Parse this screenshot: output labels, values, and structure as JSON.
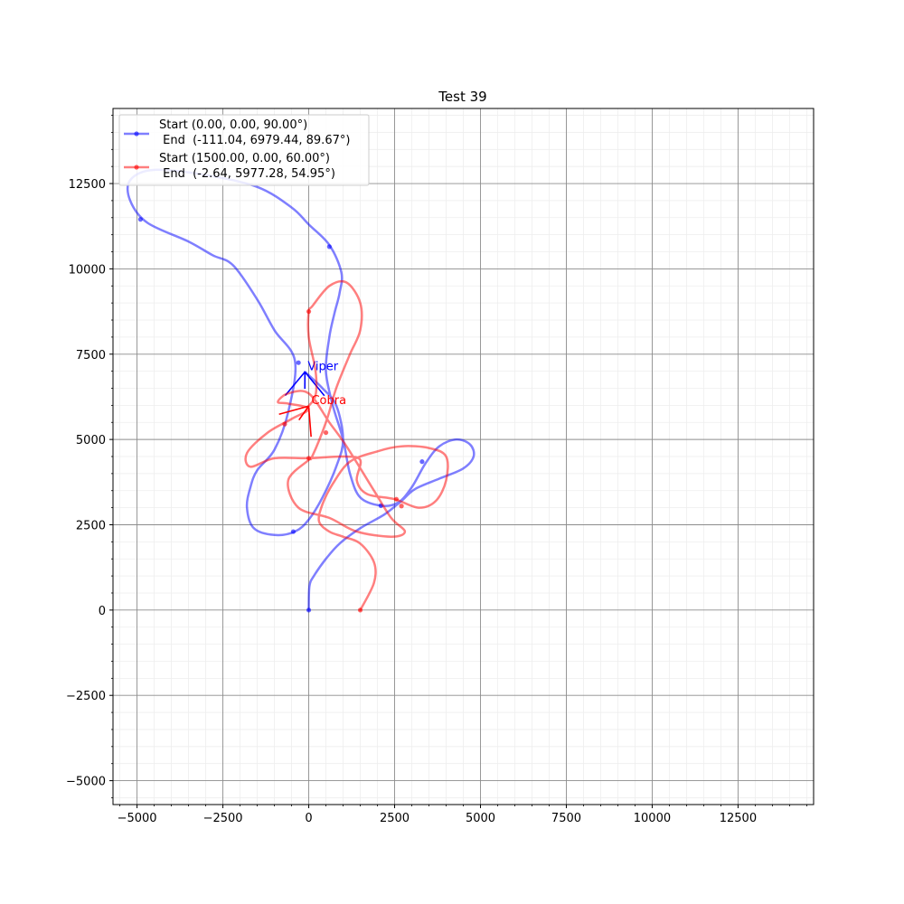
{
  "chart_data": {
    "type": "line",
    "title": "Test 39",
    "xlabel": "",
    "ylabel": "",
    "xlim": [
      -5700,
      14700
    ],
    "ylim": [
      -5700,
      14700
    ],
    "grid": "major and minor",
    "legend_position": "upper-left",
    "x_ticks": [
      -5000,
      -2500,
      0,
      2500,
      5000,
      7500,
      10000,
      12500
    ],
    "y_ticks": [
      -5000,
      -2500,
      0,
      2500,
      5000,
      7500,
      10000,
      12500
    ],
    "x_tick_labels": [
      "−5000",
      "−2500",
      "0",
      "2500",
      "5000",
      "7500",
      "10000",
      "12500"
    ],
    "y_tick_labels": [
      "−5000",
      "−2500",
      "0",
      "2500",
      "5000",
      "7500",
      "10000",
      "12500"
    ],
    "series": [
      {
        "name": "Start (0.00, 0.00, 90.00°)\n End  (-111.04, 6979.44, 89.67°)",
        "legend_line1": "Start (0.00, 0.00, 90.00°)",
        "legend_line2": " End  (-111.04, 6979.44, 89.67°)",
        "color": "#0000ff",
        "label": "Viper",
        "end_heading_deg": 89.67,
        "path": [
          [
            0,
            0
          ],
          [
            20,
            700
          ],
          [
            150,
            1000
          ],
          [
            500,
            1500
          ],
          [
            900,
            1950
          ],
          [
            1500,
            2400
          ],
          [
            2200,
            2800
          ],
          [
            2700,
            3200
          ],
          [
            3100,
            3550
          ],
          [
            3800,
            3850
          ],
          [
            4500,
            4150
          ],
          [
            4800,
            4500
          ],
          [
            4700,
            4850
          ],
          [
            4300,
            5000
          ],
          [
            3800,
            4800
          ],
          [
            3400,
            4300
          ],
          [
            3000,
            3600
          ],
          [
            2600,
            3150
          ],
          [
            2100,
            3060
          ],
          [
            1500,
            3300
          ],
          [
            1200,
            4000
          ],
          [
            1000,
            5000
          ],
          [
            700,
            6000
          ],
          [
            500,
            7000
          ],
          [
            600,
            8000
          ],
          [
            750,
            8700
          ],
          [
            900,
            9300
          ],
          [
            950,
            9900
          ],
          [
            600,
            10700
          ],
          [
            0,
            11300
          ],
          [
            -500,
            11800
          ],
          [
            -1500,
            12400
          ],
          [
            -3000,
            12750
          ],
          [
            -4500,
            12900
          ],
          [
            -5200,
            12600
          ],
          [
            -5200,
            12000
          ],
          [
            -4700,
            11350
          ],
          [
            -3500,
            10800
          ],
          [
            -2800,
            10400
          ],
          [
            -2200,
            10100
          ],
          [
            -1500,
            9100
          ],
          [
            -1000,
            8200
          ],
          [
            -400,
            7300
          ],
          [
            -600,
            5800
          ],
          [
            -1000,
            4700
          ],
          [
            -1500,
            4100
          ],
          [
            -1700,
            3600
          ],
          [
            -1800,
            3000
          ],
          [
            -1600,
            2400
          ],
          [
            -1000,
            2200
          ],
          [
            -400,
            2300
          ],
          [
            0,
            2650
          ],
          [
            400,
            3300
          ],
          [
            800,
            4200
          ],
          [
            1000,
            5000
          ],
          [
            800,
            6000
          ],
          [
            400,
            6500
          ],
          [
            -111.04,
            6979.44
          ]
        ],
        "markers": [
          [
            0,
            0
          ],
          [
            2100,
            3060
          ],
          [
            3300,
            4350
          ],
          [
            600,
            10650
          ],
          [
            -4900,
            11450
          ],
          [
            -300,
            7250
          ],
          [
            -450,
            2300
          ]
        ]
      },
      {
        "name": "Start (1500.00, 0.00, 60.00°)\n End  (-2.64, 5977.28, 54.95°)",
        "legend_line1": "Start (1500.00, 0.00, 60.00°)",
        "legend_line2": " End  (-2.64, 5977.28, 54.95°)",
        "color": "#ff0000",
        "label": "Cobra",
        "end_heading_deg": 54.95,
        "path": [
          [
            1500,
            0
          ],
          [
            1900,
            800
          ],
          [
            1900,
            1400
          ],
          [
            1500,
            1950
          ],
          [
            1000,
            2150
          ],
          [
            600,
            2300
          ],
          [
            300,
            2600
          ],
          [
            400,
            3100
          ],
          [
            700,
            3700
          ],
          [
            1200,
            4350
          ],
          [
            2000,
            4650
          ],
          [
            2700,
            4800
          ],
          [
            3500,
            4750
          ],
          [
            4000,
            4500
          ],
          [
            4000,
            3800
          ],
          [
            3700,
            3200
          ],
          [
            3200,
            3000
          ],
          [
            2500,
            3250
          ],
          [
            1700,
            3400
          ],
          [
            1400,
            3800
          ],
          [
            1500,
            4400
          ],
          [
            1000,
            4500
          ],
          [
            0,
            4450
          ],
          [
            -1000,
            4450
          ],
          [
            -1700,
            4200
          ],
          [
            -1800,
            4600
          ],
          [
            -1200,
            5200
          ],
          [
            -500,
            5600
          ],
          [
            0,
            5900
          ],
          [
            -600,
            6050
          ],
          [
            -900,
            6100
          ],
          [
            -600,
            6350
          ],
          [
            0,
            6350
          ],
          [
            600,
            5500
          ],
          [
            1100,
            4800
          ],
          [
            1900,
            3500
          ],
          [
            2400,
            2700
          ],
          [
            2800,
            2300
          ],
          [
            2400,
            2150
          ],
          [
            1400,
            2300
          ],
          [
            600,
            2700
          ],
          [
            -300,
            3000
          ],
          [
            -600,
            3800
          ],
          [
            0,
            4400
          ],
          [
            100,
            4500
          ],
          [
            500,
            5500
          ],
          [
            800,
            6500
          ],
          [
            1200,
            7500
          ],
          [
            1500,
            8200
          ],
          [
            1500,
            9000
          ],
          [
            1100,
            9600
          ],
          [
            600,
            9500
          ],
          [
            100,
            8900
          ],
          [
            0,
            8750
          ],
          [
            0,
            8000
          ],
          [
            200,
            7000
          ],
          [
            200,
            6300
          ],
          [
            -2.64,
            5977.28
          ]
        ],
        "markers": [
          [
            1500,
            0
          ],
          [
            2700,
            3050
          ],
          [
            2550,
            3250
          ],
          [
            500,
            5200
          ],
          [
            0,
            4450
          ],
          [
            -700,
            5450
          ],
          [
            0,
            8750
          ]
        ]
      }
    ]
  }
}
